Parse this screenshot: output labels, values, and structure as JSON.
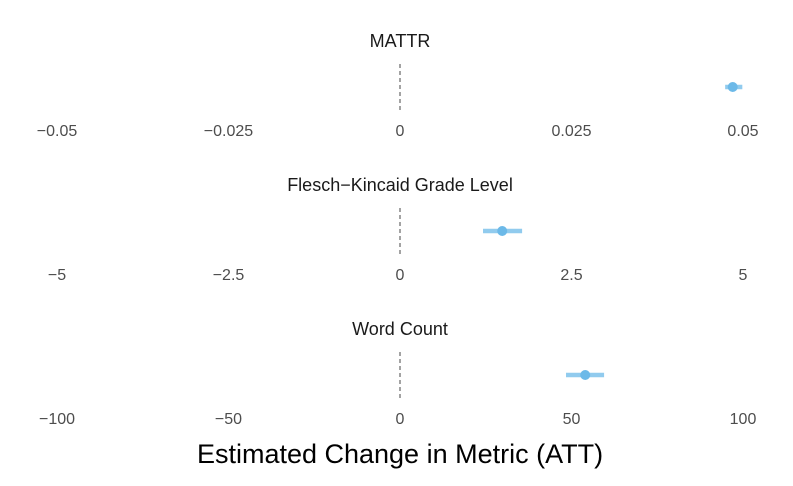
{
  "chart_data": [
    {
      "type": "pointrange",
      "title": "MATTR",
      "categories": [
        null
      ],
      "values": [
        0.0485
      ],
      "lower": [
        0.0474
      ],
      "upper": [
        0.0499
      ],
      "color": "#6cb9e8",
      "refline": 0,
      "xlim": [
        -0.05,
        0.05
      ],
      "xticks": [
        {
          "value": -0.05,
          "label": "−0.05"
        },
        {
          "value": -0.025,
          "label": "−0.025"
        },
        0,
        0.025,
        0.05
      ]
    },
    {
      "type": "pointrange",
      "title": "Flesch−Kincaid Grade Level",
      "categories": [
        null
      ],
      "values": [
        1.49
      ],
      "lower": [
        1.21
      ],
      "upper": [
        1.78
      ],
      "color": "#6cb9e8",
      "refline": 0,
      "xlim": [
        -5,
        5
      ],
      "xticks": [
        {
          "value": -5,
          "label": "−5"
        },
        {
          "value": -2.5,
          "label": "−2.5"
        },
        0,
        2.5,
        5
      ]
    },
    {
      "type": "pointrange",
      "title": "Word Count",
      "categories": [
        null
      ],
      "values": [
        54
      ],
      "lower": [
        48.4
      ],
      "upper": [
        59.5
      ],
      "color": "#6cb9e8",
      "refline": 0,
      "xlim": [
        -100,
        100
      ],
      "xticks": [
        {
          "value": -100,
          "label": "−100"
        },
        {
          "value": -50,
          "label": "−50"
        },
        0,
        50,
        100
      ]
    }
  ],
  "xlabel": "Estimated Change in Metric (ATT)"
}
